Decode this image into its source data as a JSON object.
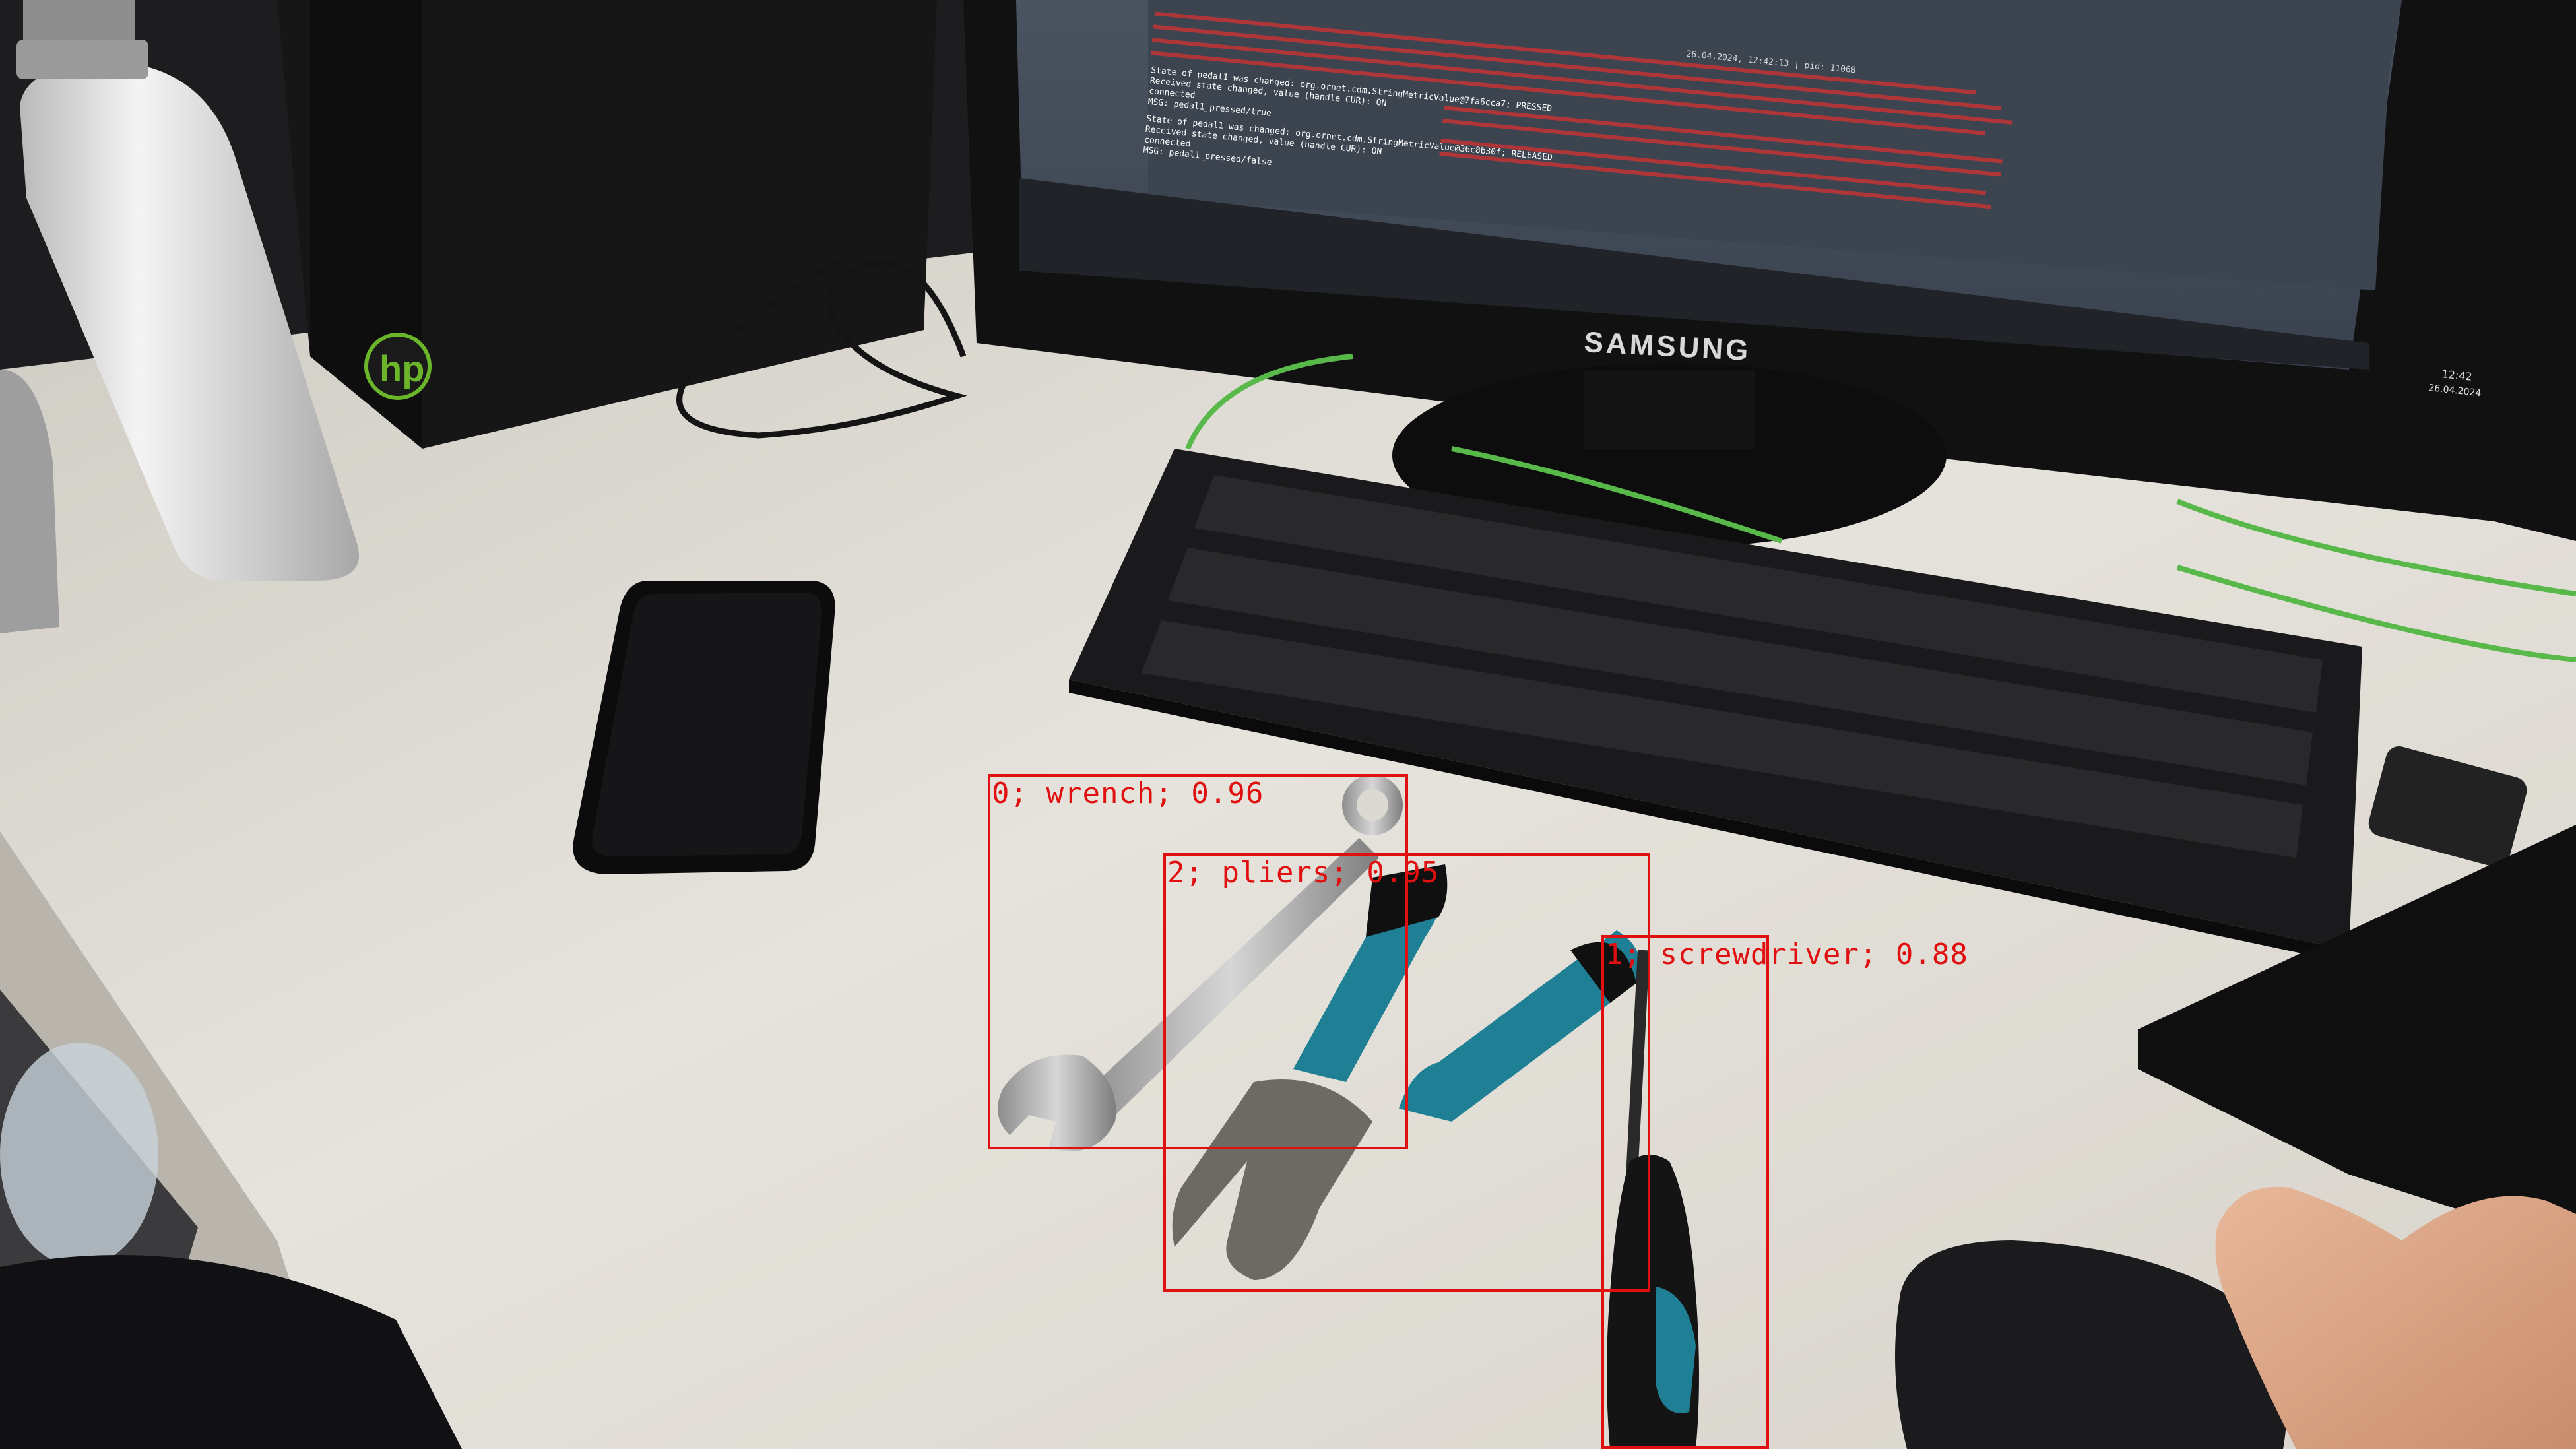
{
  "monitor": {
    "brand": "SAMSUNG"
  },
  "computer": {
    "brand": "hp"
  },
  "taskbar": {
    "time": "12:42",
    "date": "26.04.2024"
  },
  "console": {
    "title": "26.04.2024, 12:42:13 | pid: 11068",
    "lines": [
      "State of pedal1 was changed: org.ornet.cdm.StringMetricValue@7fa6cca7; PRESSED",
      "Received state changed, value (handle CUR): ON",
      "connected",
      "MSG: pedal1_pressed/true",
      "State of pedal1 was changed: org.ornet.cdm.StringMetricValue@36c8b30f; RELEASED",
      "Received state changed, value (handle CUR): ON",
      "connected",
      "MSG: pedal1_pressed/false"
    ]
  },
  "detections": [
    {
      "id": "0",
      "label": "0; wrench; 0.96"
    },
    {
      "id": "2",
      "label": "2; pliers; 0.95"
    },
    {
      "id": "1",
      "label": "1; screwdriver; 0.88"
    }
  ],
  "colors": {
    "box": "#e01010",
    "desk": "#e4e1da",
    "pliers_handle": "#1f7f95",
    "cable": "#58b84a"
  }
}
